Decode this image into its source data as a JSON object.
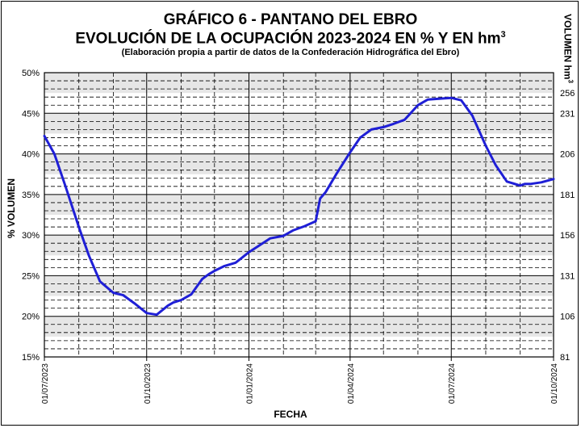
{
  "chart_data": {
    "type": "line",
    "title": "GRÁFICO 6 - PANTANO DEL EBRO",
    "subtitle_main": "EVOLUCIÓN DE LA OCUPACIÓN 2023-2024 EN % Y EN hm",
    "subtitle_sup": "3",
    "note": "(Elaboración propia a partir de datos de la Confederación Hidrográfica del Ebro)",
    "xlabel": "FECHA",
    "ylabel": "% VOLUMEN",
    "ylabel_right_main": "VOLUMEN hm",
    "ylabel_right_sup": "3",
    "x_ticks": [
      "01/07/2023",
      "01/10/2023",
      "01/01/2024",
      "01/04/2024",
      "01/07/2024",
      "01/10/2024"
    ],
    "y_ticks": [
      "15%",
      "20%",
      "25%",
      "30%",
      "35%",
      "40%",
      "45%",
      "50%"
    ],
    "y2_ticks": [
      "81",
      "106",
      "131",
      "156",
      "181",
      "206",
      "231",
      "256"
    ],
    "ylim": [
      15,
      50
    ],
    "xlim": [
      "2023-07-01",
      "2024-10-01"
    ],
    "grid": true,
    "colors": {
      "line": "#1f1fd6",
      "band": "#e6e6e6",
      "grid": "#000000"
    },
    "series": [
      {
        "x": [
          "2023-07-01",
          "2023-07-10",
          "2023-07-20",
          "2023-08-01",
          "2023-08-10",
          "2023-08-20",
          "2023-09-01",
          "2023-09-10",
          "2023-09-20",
          "2023-10-01",
          "2023-10-10",
          "2023-10-20",
          "2023-10-25",
          "2023-11-01",
          "2023-11-10",
          "2023-11-20",
          "2023-11-26",
          "2023-12-01",
          "2023-12-10",
          "2023-12-20",
          "2024-01-01",
          "2024-01-10",
          "2024-01-20",
          "2024-02-01",
          "2024-02-10",
          "2024-02-20",
          "2024-03-01",
          "2024-03-05",
          "2024-03-10",
          "2024-03-20",
          "2024-04-01",
          "2024-04-10",
          "2024-04-20",
          "2024-05-01",
          "2024-05-10",
          "2024-05-20",
          "2024-06-01",
          "2024-06-10",
          "2024-06-20",
          "2024-07-01",
          "2024-07-10",
          "2024-07-20",
          "2024-08-01",
          "2024-08-10",
          "2024-08-20",
          "2024-09-01",
          "2024-09-05",
          "2024-09-10",
          "2024-09-20",
          "2024-10-01"
        ],
        "values": [
          42.2,
          40.0,
          36.0,
          31.0,
          27.5,
          24.3,
          22.9,
          22.6,
          21.6,
          20.4,
          20.2,
          21.3,
          21.7,
          22.0,
          22.7,
          24.6,
          25.2,
          25.6,
          26.2,
          26.6,
          27.9,
          28.7,
          29.6,
          29.9,
          30.6,
          31.1,
          31.7,
          34.5,
          35.3,
          37.6,
          40.2,
          42.0,
          43.0,
          43.3,
          43.7,
          44.2,
          46.0,
          46.7,
          46.8,
          46.9,
          46.6,
          44.7,
          41.0,
          38.6,
          36.6,
          36.1,
          36.3,
          36.3,
          36.5,
          36.9
        ]
      }
    ]
  }
}
